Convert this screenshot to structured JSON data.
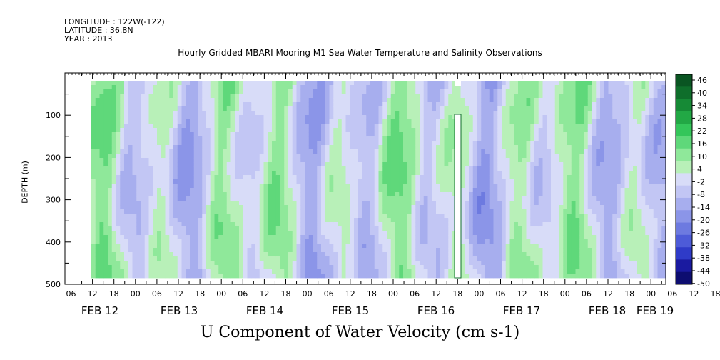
{
  "header": {
    "longitude": "LONGITUDE : 122W(-122)",
    "latitude": "LATITUDE : 36.8N",
    "year": "YEAR : 2013"
  },
  "chart_data": {
    "type": "heatmap",
    "title": "Hourly Gridded MBARI Mooring M1 Sea Water Temperature and Salinity Observations",
    "xlabel": "U Component of Water Velocity (cm s-1)",
    "ylabel": "DEPTH (m)",
    "x_hour_ticks": [
      "06",
      "12",
      "18",
      "00",
      "06",
      "12",
      "18",
      "00",
      "06",
      "12",
      "18",
      "00",
      "06",
      "12",
      "18",
      "00",
      "06",
      "12",
      "18",
      "00",
      "06",
      "12",
      "18",
      "00",
      "06",
      "12",
      "18",
      "00",
      "06",
      "12",
      "18",
      "00"
    ],
    "x_day_labels": [
      "FEB 12",
      "FEB 13",
      "FEB 14",
      "FEB 15",
      "FEB 16",
      "FEB 17",
      "FEB 18",
      "FEB 19"
    ],
    "y_ticks": [
      100,
      200,
      300,
      400,
      500
    ],
    "ylim": [
      500,
      0
    ],
    "colorbar": {
      "labels": [
        "46",
        "40",
        "34",
        "28",
        "22",
        "16",
        "10",
        "4",
        "-2",
        "-8",
        "-14",
        "-20",
        "-26",
        "-32",
        "-38",
        "-44",
        "-50"
      ],
      "range": [
        -50,
        52
      ],
      "colors": [
        "#0d0d70",
        "#1a1aa0",
        "#2f3bc8",
        "#4d5bd8",
        "#6d7ae0",
        "#8b95e8",
        "#a7aeee",
        "#c2c6f4",
        "#d8dcf8",
        "#b8f0b8",
        "#8fe89a",
        "#5fd87a",
        "#34c65a",
        "#22a845",
        "#168a36",
        "#0f6e2b",
        "#0a5522"
      ]
    },
    "grid": false
  }
}
